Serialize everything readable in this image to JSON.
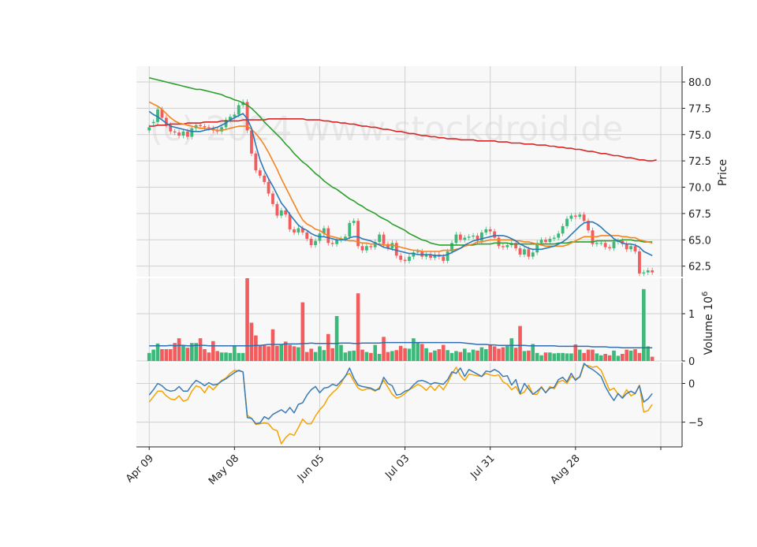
{
  "watermark": "(c) 2024 www.stockdroid.de",
  "colors": {
    "up": "#3cb878",
    "down": "#f25c5c",
    "ma5": "#2a7ab8",
    "ma10": "#f5831f",
    "ma30": "#2ca02c",
    "ma200": "#d62728",
    "macd": "#3a7bb5",
    "signal": "#f5a300",
    "vol_ma": "#2f6fb0"
  },
  "chart_data": [
    {
      "type": "candlestick",
      "name": "price",
      "ylabel": "Price",
      "ylim": [
        61.5,
        81.5
      ],
      "yticks": [
        62.5,
        65.0,
        67.5,
        70.0,
        72.5,
        75.0,
        77.5,
        80.0
      ],
      "ytick_labels": [
        "62.5",
        "65.0",
        "67.5",
        "70.0",
        "72.5",
        "75.0",
        "77.5",
        "80.0"
      ],
      "xlim": [
        -3,
        125
      ],
      "xticks": [
        0,
        20,
        40,
        60,
        80,
        100,
        120
      ],
      "xtick_labels": [
        "Apr 09",
        "May 08",
        "Jun 05",
        "Jul 03",
        "Jul 31",
        "Aug 28",
        ""
      ],
      "close": [
        75.7,
        76.2,
        77.4,
        76.6,
        75.9,
        75.3,
        75.2,
        74.9,
        75.3,
        74.8,
        75.6,
        75.9,
        75.8,
        75.7,
        75.6,
        75.4,
        75.3,
        75.7,
        76.4,
        76.7,
        76.9,
        77.8,
        78.1,
        75.4,
        73.2,
        71.6,
        71.1,
        70.5,
        69.4,
        68.4,
        67.3,
        67.8,
        67.4,
        66.0,
        65.7,
        66.1,
        65.7,
        65.1,
        64.5,
        64.9,
        65.6,
        66.1,
        64.7,
        64.6,
        65.0,
        65.1,
        65.3,
        66.6,
        66.8,
        64.4,
        64.0,
        64.4,
        64.3,
        64.8,
        65.5,
        64.6,
        64.2,
        64.7,
        63.5,
        63.1,
        63.0,
        63.4,
        63.8,
        63.9,
        63.4,
        63.6,
        63.3,
        63.6,
        63.4,
        63.0,
        63.9,
        64.7,
        65.5,
        65.0,
        65.2,
        65.3,
        65.4,
        64.9,
        65.7,
        66.0,
        65.8,
        65.2,
        64.4,
        64.3,
        64.5,
        64.7,
        64.2,
        63.6,
        64.1,
        63.4,
        63.8,
        64.7,
        65.0,
        64.8,
        65.1,
        65.2,
        65.6,
        66.3,
        67.0,
        67.3,
        67.2,
        67.4,
        66.8,
        65.9,
        64.6,
        64.7,
        64.7,
        64.3,
        64.2,
        64.8,
        64.9,
        64.6,
        64.1,
        64.4,
        63.9,
        61.8,
        61.9,
        62.1,
        61.9
      ],
      "open": [
        75.4,
        76.1,
        76.2,
        77.4,
        76.6,
        75.9,
        75.3,
        75.2,
        74.9,
        75.3,
        74.8,
        75.6,
        75.9,
        75.8,
        75.7,
        75.6,
        75.4,
        75.3,
        75.7,
        76.4,
        76.7,
        76.9,
        77.8,
        78.1,
        75.4,
        73.2,
        71.6,
        71.1,
        70.5,
        69.4,
        68.4,
        67.3,
        67.8,
        67.4,
        66.0,
        65.7,
        66.1,
        65.7,
        65.1,
        64.5,
        64.9,
        65.6,
        66.1,
        64.7,
        64.6,
        65.0,
        65.1,
        65.3,
        66.6,
        66.8,
        64.4,
        64.0,
        64.4,
        64.3,
        64.8,
        65.5,
        64.6,
        64.2,
        64.7,
        63.5,
        63.1,
        63.0,
        63.4,
        63.8,
        63.9,
        63.4,
        63.6,
        63.3,
        63.6,
        63.4,
        63.0,
        63.9,
        64.7,
        65.5,
        65.0,
        65.2,
        65.3,
        65.4,
        64.9,
        65.7,
        66.0,
        65.8,
        65.2,
        64.4,
        64.3,
        64.5,
        64.7,
        64.2,
        63.6,
        64.1,
        63.4,
        63.8,
        64.7,
        65.0,
        64.8,
        65.1,
        65.2,
        65.6,
        66.3,
        67.0,
        67.3,
        67.2,
        67.4,
        66.8,
        65.9,
        64.6,
        64.7,
        64.7,
        64.3,
        64.2,
        64.8,
        64.9,
        64.6,
        64.1,
        64.4,
        63.9,
        61.8,
        61.9,
        62.1
      ],
      "ma5": [
        77.2,
        76.9,
        76.7,
        76.4,
        76.1,
        75.8,
        75.7,
        75.6,
        75.5,
        75.4,
        75.3,
        75.3,
        75.3,
        75.4,
        75.5,
        75.6,
        75.7,
        75.9,
        76.1,
        76.4,
        76.6,
        76.8,
        77.0,
        76.5,
        75.6,
        74.0,
        72.6,
        71.6,
        70.8,
        70.1,
        69.3,
        68.5,
        68.0,
        67.4,
        66.9,
        66.4,
        66.1,
        65.9,
        65.6,
        65.4,
        65.3,
        65.3,
        65.2,
        65.1,
        65.0,
        65.0,
        65.0,
        65.2,
        65.3,
        65.3,
        65.1,
        65.0,
        64.9,
        64.7,
        64.5,
        64.3,
        64.2,
        64.1,
        64.0,
        63.9,
        63.8,
        63.7,
        63.7,
        63.6,
        63.6,
        63.6,
        63.6,
        63.5,
        63.5,
        63.5,
        63.6,
        63.8,
        64.0,
        64.2,
        64.5,
        64.7,
        64.9,
        65.0,
        65.1,
        65.2,
        65.3,
        65.4,
        65.4,
        65.4,
        65.3,
        65.1,
        64.9,
        64.6,
        64.4,
        64.2,
        64.1,
        64.1,
        64.1,
        64.2,
        64.3,
        64.4,
        64.6,
        64.8,
        65.1,
        65.5,
        65.9,
        66.3,
        66.6,
        66.7,
        66.7,
        66.5,
        66.2,
        65.8,
        65.5,
        65.1,
        64.9,
        64.7,
        64.6,
        64.6,
        64.5,
        64.3,
        63.9,
        63.7,
        63.5
      ],
      "ma10": [
        78.1,
        77.9,
        77.7,
        77.4,
        77.0,
        76.6,
        76.3,
        76.1,
        76.0,
        75.9,
        75.8,
        75.7,
        75.6,
        75.6,
        75.5,
        75.5,
        75.4,
        75.4,
        75.5,
        75.6,
        75.7,
        75.8,
        75.8,
        75.8,
        75.5,
        75.1,
        74.6,
        74.0,
        73.3,
        72.5,
        71.7,
        70.8,
        70.0,
        69.2,
        68.4,
        67.6,
        66.9,
        66.5,
        66.3,
        66.0,
        65.9,
        65.6,
        65.4,
        65.3,
        65.2,
        65.1,
        65.0,
        64.9,
        64.9,
        64.8,
        64.7,
        64.7,
        64.6,
        64.6,
        64.6,
        64.5,
        64.5,
        64.5,
        64.4,
        64.3,
        64.2,
        64.1,
        64.0,
        64.0,
        63.9,
        63.9,
        63.9,
        63.9,
        63.9,
        64.0,
        64.0,
        64.0,
        64.1,
        64.2,
        64.4,
        64.5,
        64.6,
        64.8,
        64.8,
        64.9,
        65.0,
        65.0,
        65.0,
        65.0,
        65.0,
        65.0,
        64.9,
        64.9,
        64.8,
        64.8,
        64.7,
        64.6,
        64.5,
        64.4,
        64.4,
        64.4,
        64.4,
        64.4,
        64.5,
        64.7,
        64.9,
        65.1,
        65.3,
        65.3,
        65.3,
        65.3,
        65.4,
        65.4,
        65.4,
        65.4,
        65.4,
        65.3,
        65.3,
        65.2,
        65.2,
        65.0,
        64.9,
        64.8,
        64.7
      ],
      "ma30": [
        80.4,
        80.3,
        80.2,
        80.1,
        80.0,
        79.9,
        79.8,
        79.7,
        79.6,
        79.5,
        79.4,
        79.3,
        79.3,
        79.2,
        79.1,
        79.0,
        78.9,
        78.8,
        78.6,
        78.5,
        78.3,
        78.2,
        78.0,
        77.8,
        77.5,
        77.1,
        76.7,
        76.2,
        75.8,
        75.4,
        75.0,
        74.6,
        74.1,
        73.7,
        73.2,
        72.8,
        72.4,
        72.1,
        71.7,
        71.3,
        71.0,
        70.6,
        70.3,
        70.0,
        69.8,
        69.5,
        69.2,
        68.9,
        68.7,
        68.4,
        68.2,
        67.9,
        67.7,
        67.5,
        67.2,
        67.0,
        66.8,
        66.5,
        66.3,
        66.1,
        65.9,
        65.6,
        65.4,
        65.2,
        65.0,
        64.9,
        64.7,
        64.6,
        64.5,
        64.5,
        64.5,
        64.5,
        64.5,
        64.5,
        64.5,
        64.5,
        64.5,
        64.6,
        64.6,
        64.6,
        64.6,
        64.7,
        64.7,
        64.7,
        64.7,
        64.6,
        64.6,
        64.6,
        64.6,
        64.6,
        64.6,
        64.6,
        64.6,
        64.6,
        64.6,
        64.6,
        64.7,
        64.7,
        64.7,
        64.8,
        64.8,
        64.8,
        64.8,
        64.8,
        64.8,
        64.9,
        64.9,
        64.9,
        64.9,
        64.9,
        64.9,
        65.0,
        65.0,
        65.0,
        64.9,
        64.9,
        64.8,
        64.8,
        64.8
      ],
      "ma200": [
        75.8,
        75.8,
        75.9,
        75.9,
        75.9,
        76.0,
        76.0,
        76.0,
        76.0,
        76.1,
        76.1,
        76.1,
        76.1,
        76.2,
        76.2,
        76.2,
        76.2,
        76.3,
        76.3,
        76.3,
        76.3,
        76.3,
        76.4,
        76.4,
        76.4,
        76.4,
        76.4,
        76.4,
        76.5,
        76.5,
        76.5,
        76.5,
        76.5,
        76.5,
        76.5,
        76.5,
        76.5,
        76.4,
        76.4,
        76.4,
        76.4,
        76.3,
        76.3,
        76.2,
        76.2,
        76.1,
        76.1,
        76.0,
        76.0,
        75.9,
        75.8,
        75.8,
        75.7,
        75.7,
        75.6,
        75.5,
        75.5,
        75.4,
        75.3,
        75.3,
        75.2,
        75.1,
        75.1,
        75.0,
        74.9,
        74.9,
        74.8,
        74.8,
        74.7,
        74.7,
        74.6,
        74.6,
        74.6,
        74.5,
        74.5,
        74.5,
        74.5,
        74.4,
        74.4,
        74.4,
        74.4,
        74.4,
        74.3,
        74.3,
        74.3,
        74.2,
        74.2,
        74.2,
        74.1,
        74.1,
        74.1,
        74.0,
        74.0,
        74.0,
        73.9,
        73.9,
        73.8,
        73.8,
        73.7,
        73.7,
        73.6,
        73.6,
        73.5,
        73.4,
        73.4,
        73.3,
        73.2,
        73.2,
        73.1,
        73.0,
        73.0,
        72.9,
        72.8,
        72.8,
        72.7,
        72.6,
        72.6,
        72.5,
        72.5,
        72.6
      ]
    },
    {
      "type": "bar",
      "name": "volume",
      "ylabel": "Volume  10",
      "ylabel_exp": "6",
      "ylim": [
        0,
        1.75
      ],
      "yticks": [
        0,
        1
      ],
      "ytick_labels": [
        "0",
        "1"
      ],
      "values": [
        0.17,
        0.24,
        0.37,
        0.25,
        0.25,
        0.25,
        0.38,
        0.48,
        0.33,
        0.28,
        0.38,
        0.38,
        0.48,
        0.25,
        0.18,
        0.42,
        0.21,
        0.18,
        0.18,
        0.17,
        0.33,
        0.17,
        0.17,
        1.75,
        0.81,
        0.54,
        0.34,
        0.33,
        0.31,
        0.67,
        0.32,
        0.34,
        0.41,
        0.34,
        0.31,
        0.29,
        1.24,
        0.19,
        0.26,
        0.19,
        0.31,
        0.23,
        0.57,
        0.27,
        0.95,
        0.34,
        0.18,
        0.21,
        0.22,
        1.43,
        0.24,
        0.19,
        0.17,
        0.34,
        0.15,
        0.51,
        0.19,
        0.21,
        0.23,
        0.32,
        0.27,
        0.26,
        0.48,
        0.39,
        0.36,
        0.27,
        0.18,
        0.22,
        0.25,
        0.34,
        0.23,
        0.17,
        0.21,
        0.19,
        0.26,
        0.18,
        0.24,
        0.22,
        0.29,
        0.25,
        0.35,
        0.31,
        0.26,
        0.29,
        0.34,
        0.48,
        0.28,
        0.74,
        0.21,
        0.22,
        0.36,
        0.17,
        0.12,
        0.18,
        0.18,
        0.16,
        0.17,
        0.17,
        0.16,
        0.16,
        0.35,
        0.24,
        0.17,
        0.24,
        0.24,
        0.16,
        0.12,
        0.15,
        0.12,
        0.22,
        0.11,
        0.15,
        0.24,
        0.22,
        0.25,
        0.17,
        1.52,
        0.31,
        0.09
      ],
      "vol_ma": [
        0.32,
        0.32,
        0.32,
        0.32,
        0.32,
        0.33,
        0.32,
        0.33,
        0.33,
        0.32,
        0.32,
        0.33,
        0.33,
        0.33,
        0.32,
        0.32,
        0.32,
        0.32,
        0.32,
        0.32,
        0.32,
        0.32,
        0.32,
        0.32,
        0.32,
        0.33,
        0.33,
        0.34,
        0.35,
        0.35,
        0.35,
        0.35,
        0.36,
        0.36,
        0.36,
        0.36,
        0.37,
        0.37,
        0.38,
        0.37,
        0.37,
        0.37,
        0.37,
        0.37,
        0.37,
        0.38,
        0.38,
        0.38,
        0.37,
        0.37,
        0.38,
        0.38,
        0.38,
        0.38,
        0.38,
        0.39,
        0.39,
        0.39,
        0.39,
        0.39,
        0.39,
        0.39,
        0.39,
        0.39,
        0.39,
        0.39,
        0.39,
        0.39,
        0.39,
        0.39,
        0.39,
        0.39,
        0.39,
        0.39,
        0.38,
        0.37,
        0.36,
        0.35,
        0.35,
        0.35,
        0.34,
        0.34,
        0.33,
        0.33,
        0.33,
        0.33,
        0.33,
        0.33,
        0.33,
        0.32,
        0.32,
        0.32,
        0.32,
        0.32,
        0.32,
        0.32,
        0.31,
        0.31,
        0.31,
        0.31,
        0.31,
        0.31,
        0.31,
        0.31,
        0.3,
        0.3,
        0.3,
        0.3,
        0.29,
        0.29,
        0.29,
        0.28,
        0.28,
        0.28,
        0.28,
        0.28,
        0.28,
        0.28,
        0.28
      ]
    },
    {
      "type": "line",
      "name": "macd",
      "ylim": [
        -8.2,
        2.7
      ],
      "yticks": [
        -5,
        0
      ],
      "ytick_labels": [
        "−5",
        "0"
      ],
      "series": [
        {
          "name": "MACD",
          "values": [
            -1.5,
            -0.8,
            0.0,
            -0.3,
            -0.8,
            -1.0,
            -0.9,
            -0.4,
            -1.0,
            -1.0,
            -0.2,
            0.4,
            0.1,
            -0.3,
            0.1,
            -0.2,
            -0.1,
            0.3,
            0.6,
            1.0,
            1.4,
            1.7,
            1.5,
            -4.4,
            -4.5,
            -5.2,
            -5.1,
            -4.3,
            -4.6,
            -4.0,
            -3.7,
            -3.4,
            -3.8,
            -3.1,
            -3.8,
            -2.7,
            -2.5,
            -1.5,
            -0.8,
            -0.4,
            -1.2,
            -0.6,
            -0.5,
            -0.1,
            -0.3,
            0.3,
            0.9,
            2.0,
            0.7,
            -0.2,
            -0.4,
            -0.5,
            -0.6,
            -0.9,
            -0.7,
            0.8,
            0.0,
            -0.3,
            -1.5,
            -1.4,
            -1.0,
            -0.8,
            -0.2,
            0.3,
            0.4,
            0.2,
            -0.1,
            0.1,
            0.0,
            -0.1,
            0.5,
            1.5,
            1.3,
            2.0,
            0.9,
            1.8,
            1.5,
            1.2,
            0.9,
            1.6,
            1.5,
            1.8,
            1.5,
            0.9,
            1.0,
            -0.2,
            0.5,
            -1.3,
            0.0,
            -0.7,
            -1.4,
            -1.0,
            -0.5,
            -1.2,
            -0.6,
            -0.5,
            0.5,
            0.8,
            0.2,
            1.3,
            0.4,
            0.9,
            2.6,
            2.1,
            1.8,
            1.4,
            0.9,
            -0.4,
            -1.4,
            -2.2,
            -1.3,
            -1.9,
            -1.3,
            -1.0,
            -1.3,
            -0.3,
            -2.4,
            -2.0,
            -1.3
          ]
        },
        {
          "name": "Signal",
          "values": [
            -2.4,
            -1.7,
            -1.0,
            -1.0,
            -1.6,
            -2.0,
            -2.1,
            -1.6,
            -2.3,
            -2.1,
            -1.0,
            -0.3,
            -0.5,
            -1.2,
            -0.3,
            -0.8,
            -0.2,
            0.4,
            0.7,
            1.3,
            1.7,
            1.6,
            1.5,
            -4.1,
            -4.5,
            -5.3,
            -5.2,
            -5.1,
            -5.2,
            -5.9,
            -6.1,
            -7.8,
            -7.0,
            -6.5,
            -6.7,
            -5.7,
            -4.6,
            -5.2,
            -5.2,
            -4.2,
            -3.4,
            -2.8,
            -1.8,
            -1.2,
            -0.7,
            0.0,
            1.0,
            1.3,
            0.3,
            -0.6,
            -0.9,
            -0.7,
            -0.7,
            -1.0,
            -0.5,
            0.4,
            -0.5,
            -1.4,
            -1.9,
            -1.7,
            -1.3,
            -0.8,
            -0.5,
            -0.1,
            -0.4,
            -0.9,
            -0.3,
            -0.9,
            -0.2,
            -0.8,
            0.1,
            1.2,
            2.1,
            1.0,
            0.4,
            1.2,
            1.1,
            1.0,
            0.9,
            1.3,
            1.1,
            1.0,
            1.1,
            0.2,
            -0.1,
            -0.8,
            -0.4,
            -1.4,
            -1.1,
            -0.2,
            -1.4,
            -1.4,
            -0.4,
            -1.2,
            -0.4,
            -0.7,
            0.2,
            0.4,
            0.0,
            0.9,
            0.6,
            0.8,
            2.4,
            2.3,
            2.1,
            2.2,
            1.7,
            0.4,
            -0.9,
            -0.6,
            -1.4,
            -1.8,
            -0.8,
            -1.6,
            -1.3,
            -0.2,
            -3.7,
            -3.5,
            -2.7
          ]
        }
      ]
    }
  ]
}
